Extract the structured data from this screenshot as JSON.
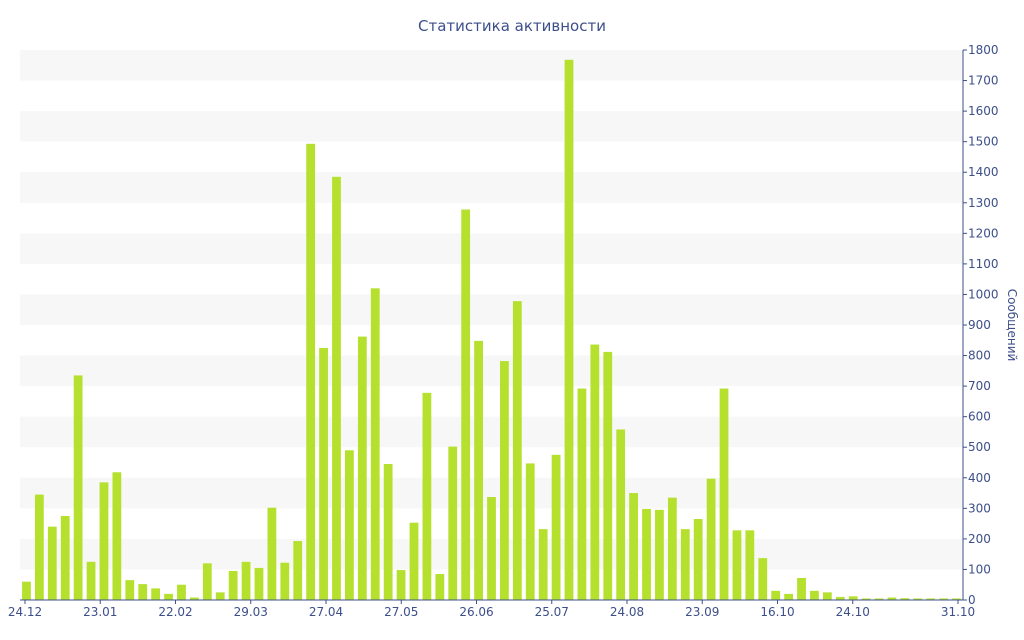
{
  "chart_data": {
    "type": "bar",
    "title": "Статистика активности",
    "ylabel": "Сообщений",
    "xlabel": "",
    "ylim": [
      0,
      1800
    ],
    "y_ticks": [
      0,
      100,
      200,
      300,
      400,
      500,
      600,
      700,
      800,
      900,
      1000,
      1100,
      1200,
      1300,
      1400,
      1500,
      1600,
      1700,
      1800
    ],
    "x_tick_labels": [
      "24.12",
      "23.01",
      "22.02",
      "29.03",
      "27.04",
      "27.05",
      "26.06",
      "25.07",
      "24.08",
      "23.09",
      "16.10",
      "24.10",
      "31.10"
    ],
    "y_axis_position": "right",
    "grid": "horizontal-bands",
    "bar_color": "#b5e02e",
    "values": [
      60,
      345,
      240,
      275,
      735,
      125,
      385,
      418,
      65,
      52,
      38,
      20,
      50,
      8,
      120,
      25,
      95,
      125,
      105,
      302,
      122,
      193,
      1493,
      825,
      1385,
      490,
      862,
      1020,
      445,
      98,
      253,
      678,
      85,
      502,
      1278,
      848,
      337,
      782,
      978,
      447,
      232,
      475,
      1768,
      692,
      836,
      812,
      558,
      350,
      298,
      295,
      335,
      232,
      265,
      397,
      692,
      228,
      228,
      137,
      30,
      20,
      72,
      30,
      25,
      10,
      12,
      5,
      5,
      8,
      6,
      5,
      5,
      5,
      5
    ]
  }
}
